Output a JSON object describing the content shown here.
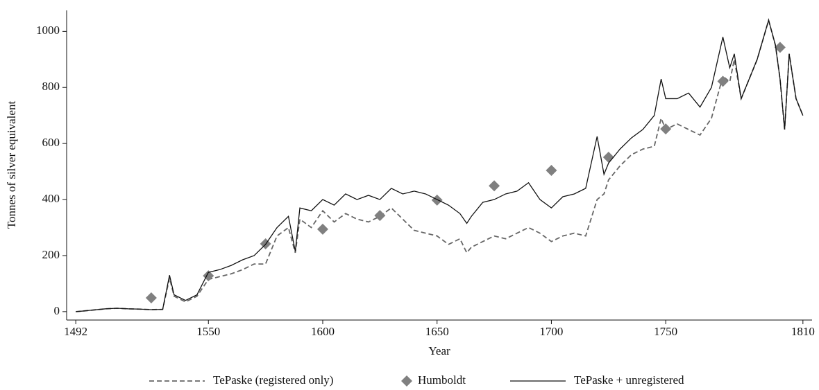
{
  "chart_data": {
    "type": "line",
    "x_label": "Year",
    "y_label": "Tonnes of silver equivalent",
    "x": [
      1492,
      1495,
      1500,
      1505,
      1510,
      1515,
      1520,
      1525,
      1530,
      1533,
      1535,
      1540,
      1545,
      1550,
      1555,
      1560,
      1565,
      1570,
      1575,
      1580,
      1585,
      1588,
      1590,
      1595,
      1600,
      1605,
      1610,
      1615,
      1620,
      1625,
      1630,
      1635,
      1640,
      1645,
      1650,
      1655,
      1660,
      1663,
      1665,
      1670,
      1675,
      1680,
      1685,
      1690,
      1695,
      1700,
      1705,
      1710,
      1715,
      1720,
      1723,
      1725,
      1730,
      1735,
      1740,
      1745,
      1748,
      1750,
      1755,
      1760,
      1765,
      1770,
      1775,
      1778,
      1780,
      1783,
      1785,
      1790,
      1795,
      1798,
      1800,
      1802,
      1804,
      1807,
      1810
    ],
    "series": [
      {
        "name": "TePaske (registered only)",
        "type": "line",
        "dashed": true,
        "color": "#666666",
        "values": [
          0,
          2,
          6,
          10,
          12,
          10,
          9,
          7,
          8,
          120,
          55,
          35,
          55,
          115,
          125,
          135,
          150,
          170,
          170,
          270,
          300,
          210,
          330,
          300,
          360,
          320,
          350,
          330,
          320,
          340,
          370,
          330,
          290,
          280,
          270,
          240,
          260,
          210,
          230,
          250,
          270,
          260,
          280,
          300,
          280,
          250,
          270,
          280,
          270,
          400,
          420,
          470,
          520,
          560,
          580,
          590,
          690,
          650,
          670,
          650,
          630,
          690,
          840,
          820,
          900,
          760,
          800,
          900,
          1040,
          950,
          830,
          650,
          920,
          760,
          700
        ]
      },
      {
        "name": "Humboldt",
        "type": "scatter",
        "marker": "diamond",
        "color": "#808080",
        "x": [
          1525,
          1550,
          1575,
          1600,
          1625,
          1650,
          1675,
          1700,
          1725,
          1750,
          1775,
          1800
        ],
        "values": [
          49,
          128,
          242,
          294,
          343,
          398,
          449,
          504,
          551,
          652,
          822,
          943
        ]
      },
      {
        "name": "TePaske + unregistered",
        "type": "line",
        "dashed": false,
        "color": "#111111",
        "values": [
          0,
          2,
          6,
          10,
          12,
          10,
          9,
          7,
          8,
          130,
          60,
          40,
          60,
          140,
          150,
          165,
          185,
          200,
          240,
          300,
          340,
          215,
          370,
          360,
          400,
          380,
          420,
          400,
          415,
          400,
          440,
          420,
          430,
          420,
          400,
          380,
          350,
          315,
          340,
          390,
          400,
          420,
          430,
          460,
          400,
          370,
          410,
          420,
          440,
          625,
          490,
          530,
          580,
          620,
          650,
          700,
          830,
          760,
          760,
          780,
          730,
          800,
          980,
          870,
          920,
          760,
          800,
          900,
          1040,
          950,
          830,
          650,
          920,
          760,
          700
        ]
      }
    ],
    "xlim": [
      1488,
      1814
    ],
    "ylim": [
      -30,
      1075
    ],
    "xticks": [
      1492,
      1550,
      1600,
      1650,
      1700,
      1750,
      1810
    ],
    "yticks": [
      0,
      200,
      400,
      600,
      800,
      1000
    ],
    "legend": "bottom"
  }
}
